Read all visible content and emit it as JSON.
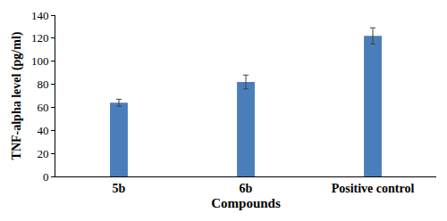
{
  "chart_data": {
    "type": "bar",
    "x_label": "Compounds",
    "y_label": "TNF-alpha level (pg/ml)",
    "categories": [
      "5b",
      "6b",
      "Positive control"
    ],
    "values": [
      64,
      82,
      122
    ],
    "errors": [
      3,
      6,
      7
    ],
    "color": "#4a7ebb",
    "ylim": [
      0,
      140
    ],
    "yticks": [
      0,
      20,
      40,
      60,
      80,
      100,
      120,
      140
    ],
    "grid": false
  }
}
